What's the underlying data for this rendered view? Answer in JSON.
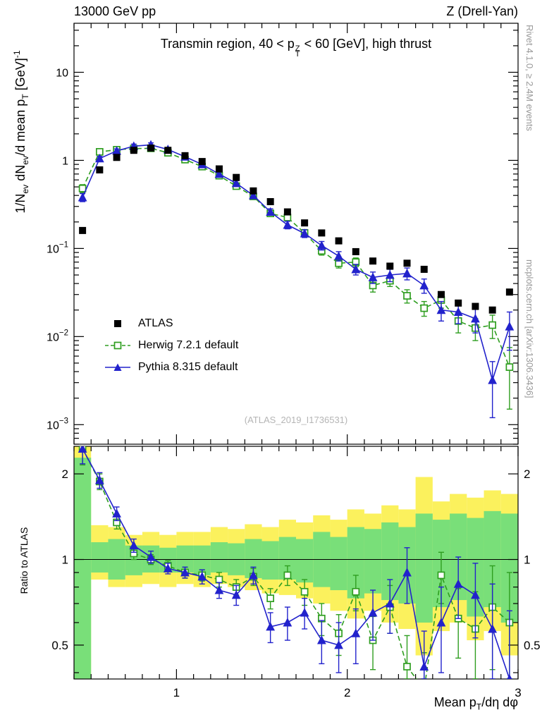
{
  "chart_data": {
    "type": "line",
    "header_left": "13000 GeV pp",
    "header_right": "Z (Drell-Yan)",
    "title": {
      "pre": "Transmin region, 40 < p",
      "sup": "Z",
      "sub": "T",
      "post": " < 60 [GeV], high thrust"
    },
    "watermark": "(ATLAS_2019_I1736531)",
    "caption_right_top": "Rivet 4.1.0, ≥ 2.4M events",
    "caption_right_bottom": "mcplots.cern.ch [arXiv:1306.3436]",
    "ylabel_main": {
      "p1": "1/N",
      "s1": "ev",
      "p2": " dN",
      "s2": "ev",
      "p3": "/d mean p",
      "s3": "T",
      "p4": " [GeV]",
      "sup": "-1"
    },
    "ylabel_ratio": "Ratio to ATLAS",
    "xlabel": {
      "p1": "Mean p",
      "s1": "T",
      "p2": "/dη dφ"
    },
    "legend": [
      {
        "label": "ATLAS",
        "series": "atlas",
        "marker": "filled-black-square"
      },
      {
        "label": "Herwig 7.2.1 default",
        "series": "herwig",
        "marker": "open-green-square-dashed-line"
      },
      {
        "label": "Pythia 8.315 default",
        "series": "pythia",
        "marker": "filled-blue-triangle-solid-line"
      }
    ],
    "colors": {
      "atlas": "#000000",
      "herwig": "#2f9e20",
      "pythia": "#2222cc",
      "band_yellow": "#fbf15d",
      "band_green": "#79df79",
      "ref_line": "#000000"
    },
    "axes": {
      "x": {
        "min": 0.4,
        "max": 3.0,
        "scale": "linear"
      },
      "y_main": {
        "min": 0.0006,
        "max": 36,
        "scale": "log"
      },
      "y_ratio": {
        "min": 0.38,
        "max": 2.5,
        "scale": "log"
      }
    },
    "ticks": {
      "x": [
        {
          "v": 1,
          "t": "1"
        },
        {
          "v": 2,
          "t": "2"
        },
        {
          "v": 3,
          "t": "3"
        }
      ],
      "y_main": [
        {
          "v": 10,
          "t": "10"
        },
        {
          "v": 1,
          "t": "1"
        },
        {
          "v": 0.1,
          "t": "10",
          "e": "−1"
        },
        {
          "v": 0.01,
          "t": "10",
          "e": "−2"
        },
        {
          "v": 0.001,
          "t": "10",
          "e": "−3"
        }
      ],
      "y_ratio": [
        {
          "v": 2,
          "t": "2"
        },
        {
          "v": 1,
          "t": "1"
        },
        {
          "v": 0.5,
          "t": "0.5"
        }
      ]
    },
    "bin_half": 0.05,
    "x": [
      0.45,
      0.55,
      0.65,
      0.75,
      0.85,
      0.95,
      1.05,
      1.15,
      1.25,
      1.35,
      1.45,
      1.55,
      1.65,
      1.75,
      1.85,
      1.95,
      2.05,
      2.15,
      2.25,
      2.35,
      2.45,
      2.55,
      2.65,
      2.75,
      2.85,
      2.95
    ],
    "series": {
      "atlas": {
        "y": [
          0.16,
          0.78,
          1.08,
          1.3,
          1.38,
          1.3,
          1.13,
          0.97,
          0.8,
          0.64,
          0.45,
          0.34,
          0.26,
          0.195,
          0.15,
          0.122,
          0.092,
          0.072,
          0.063,
          0.068,
          0.058,
          0.03,
          0.024,
          0.022,
          0.02,
          0.032
        ]
      },
      "herwig": {
        "y": [
          0.48,
          1.25,
          1.32,
          1.36,
          1.37,
          1.22,
          1.02,
          0.85,
          0.67,
          0.51,
          0.39,
          0.25,
          0.225,
          0.15,
          0.094,
          0.068,
          0.07,
          0.038,
          0.043,
          0.029,
          0.021,
          0.026,
          0.015,
          0.0125,
          0.0135,
          0.0045
        ],
        "err": [
          0.05,
          0.07,
          0.07,
          0.07,
          0.07,
          0.06,
          0.05,
          0.045,
          0.04,
          0.03,
          0.025,
          0.02,
          0.018,
          0.014,
          0.01,
          0.008,
          0.008,
          0.006,
          0.006,
          0.005,
          0.004,
          0.005,
          0.004,
          0.0035,
          0.004,
          0.003
        ],
        "ratio": [
          2.45,
          1.88,
          1.35,
          1.05,
          1.0,
          0.95,
          0.9,
          0.88,
          0.85,
          0.8,
          0.87,
          0.73,
          0.88,
          0.77,
          0.62,
          0.55,
          0.77,
          0.52,
          0.68,
          0.42,
          0.35,
          0.88,
          0.62,
          0.57,
          0.68,
          0.6
        ],
        "ratio_err": [
          0.3,
          0.12,
          0.07,
          0.05,
          0.04,
          0.04,
          0.04,
          0.04,
          0.05,
          0.05,
          0.06,
          0.06,
          0.07,
          0.08,
          0.08,
          0.09,
          0.11,
          0.11,
          0.13,
          0.12,
          0.12,
          0.18,
          0.17,
          0.2,
          0.27,
          0.3
        ]
      },
      "pythia": {
        "y": [
          0.38,
          1.05,
          1.28,
          1.45,
          1.5,
          1.33,
          1.1,
          0.9,
          0.7,
          0.55,
          0.4,
          0.26,
          0.185,
          0.148,
          0.108,
          0.082,
          0.058,
          0.047,
          0.05,
          0.052,
          0.038,
          0.02,
          0.019,
          0.016,
          0.0032,
          0.013
        ],
        "err": [
          0.04,
          0.06,
          0.07,
          0.08,
          0.08,
          0.07,
          0.06,
          0.05,
          0.045,
          0.04,
          0.03,
          0.022,
          0.018,
          0.015,
          0.012,
          0.01,
          0.008,
          0.007,
          0.008,
          0.008,
          0.007,
          0.005,
          0.005,
          0.005,
          0.002,
          0.006
        ],
        "ratio": [
          2.45,
          1.9,
          1.45,
          1.12,
          1.02,
          0.93,
          0.9,
          0.87,
          0.78,
          0.75,
          0.88,
          0.58,
          0.6,
          0.65,
          0.52,
          0.5,
          0.55,
          0.65,
          0.7,
          0.9,
          0.42,
          0.6,
          0.82,
          0.75,
          0.57,
          0.38
        ],
        "ratio_err": [
          0.28,
          0.12,
          0.08,
          0.06,
          0.05,
          0.04,
          0.04,
          0.05,
          0.05,
          0.06,
          0.06,
          0.07,
          0.08,
          0.08,
          0.09,
          0.1,
          0.12,
          0.13,
          0.15,
          0.2,
          0.14,
          0.2,
          0.2,
          0.22,
          0.25,
          0.28
        ]
      }
    },
    "ratio_bands": {
      "yellow": [
        [
          0.3,
          2.6
        ],
        [
          0.85,
          1.32
        ],
        [
          0.8,
          1.3
        ],
        [
          0.8,
          1.22
        ],
        [
          0.82,
          1.25
        ],
        [
          0.8,
          1.22
        ],
        [
          0.82,
          1.25
        ],
        [
          0.8,
          1.25
        ],
        [
          0.82,
          1.3
        ],
        [
          0.8,
          1.28
        ],
        [
          0.78,
          1.33
        ],
        [
          0.76,
          1.3
        ],
        [
          0.75,
          1.38
        ],
        [
          0.73,
          1.35
        ],
        [
          0.7,
          1.43
        ],
        [
          0.66,
          1.38
        ],
        [
          0.62,
          1.5
        ],
        [
          0.66,
          1.45
        ],
        [
          0.6,
          1.55
        ],
        [
          0.57,
          1.5
        ],
        [
          0.46,
          1.95
        ],
        [
          0.56,
          1.6
        ],
        [
          0.6,
          1.7
        ],
        [
          0.52,
          1.65
        ],
        [
          0.56,
          1.75
        ],
        [
          0.46,
          1.7
        ]
      ],
      "green": [
        [
          0.3,
          2.28
        ],
        [
          0.9,
          1.15
        ],
        [
          0.85,
          1.18
        ],
        [
          0.88,
          1.12
        ],
        [
          0.9,
          1.12
        ],
        [
          0.9,
          1.1
        ],
        [
          0.9,
          1.12
        ],
        [
          0.88,
          1.12
        ],
        [
          0.9,
          1.15
        ],
        [
          0.88,
          1.14
        ],
        [
          0.86,
          1.18
        ],
        [
          0.85,
          1.16
        ],
        [
          0.85,
          1.2
        ],
        [
          0.83,
          1.18
        ],
        [
          0.8,
          1.25
        ],
        [
          0.78,
          1.2
        ],
        [
          0.73,
          1.3
        ],
        [
          0.76,
          1.28
        ],
        [
          0.72,
          1.35
        ],
        [
          0.7,
          1.3
        ],
        [
          0.6,
          1.45
        ],
        [
          0.68,
          1.38
        ],
        [
          0.72,
          1.45
        ],
        [
          0.63,
          1.4
        ],
        [
          0.68,
          1.48
        ],
        [
          0.6,
          1.45
        ]
      ]
    }
  }
}
